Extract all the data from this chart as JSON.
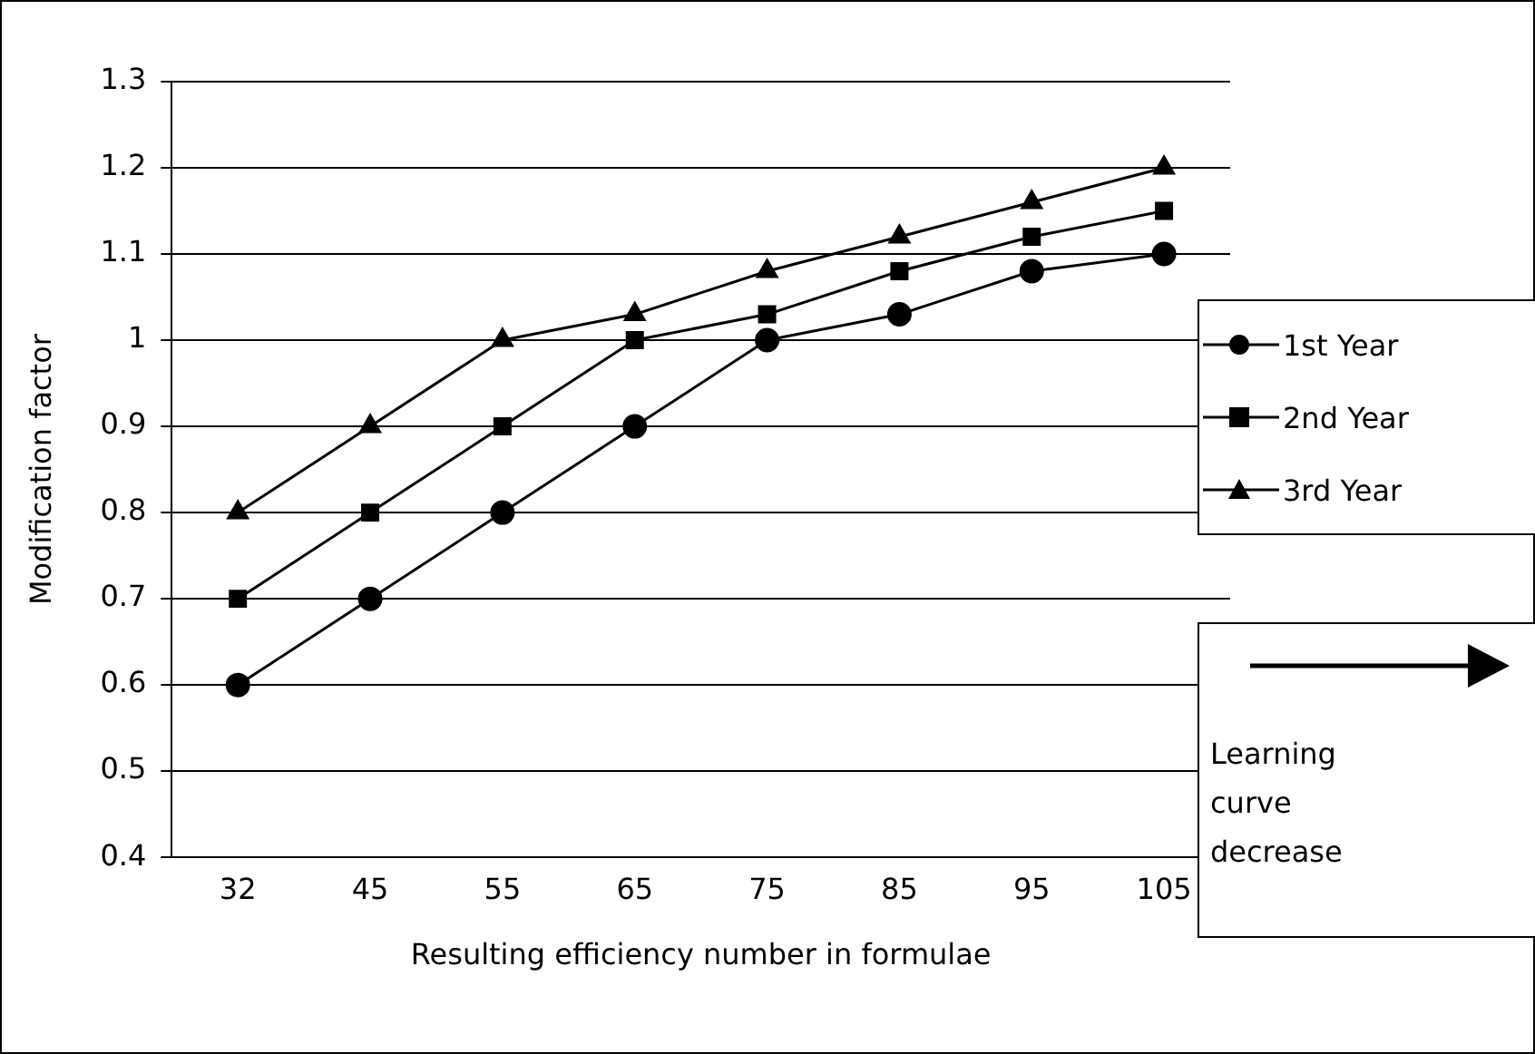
{
  "chart_data": {
    "type": "line",
    "xlabel": "Resulting efficiency number in formulae",
    "ylabel": "Modification factor",
    "categories": [
      "32",
      "45",
      "55",
      "65",
      "75",
      "85",
      "95",
      "105"
    ],
    "series": [
      {
        "name": "1st Year",
        "color": "#000000",
        "marker": "circle",
        "values": [
          0.6,
          0.7,
          0.8,
          0.9,
          1.0,
          1.03,
          1.08,
          1.1
        ]
      },
      {
        "name": "2nd Year",
        "color": "#000000",
        "marker": "square",
        "values": [
          0.7,
          0.8,
          0.9,
          1.0,
          1.03,
          1.08,
          1.12,
          1.15
        ]
      },
      {
        "name": "3rd Year",
        "color": "#000000",
        "marker": "triangle",
        "values": [
          0.8,
          0.9,
          1.0,
          1.03,
          1.08,
          1.12,
          1.16,
          1.2
        ]
      }
    ],
    "ylim": [
      0.4,
      1.3
    ],
    "yticks": [
      0.4,
      0.5,
      0.6,
      0.7,
      0.8,
      0.9,
      1,
      1.1,
      1.2,
      1.3
    ],
    "grid": "y",
    "legend": "right",
    "line_style": "solid",
    "annotations": [
      "Learning curve decrease"
    ]
  }
}
